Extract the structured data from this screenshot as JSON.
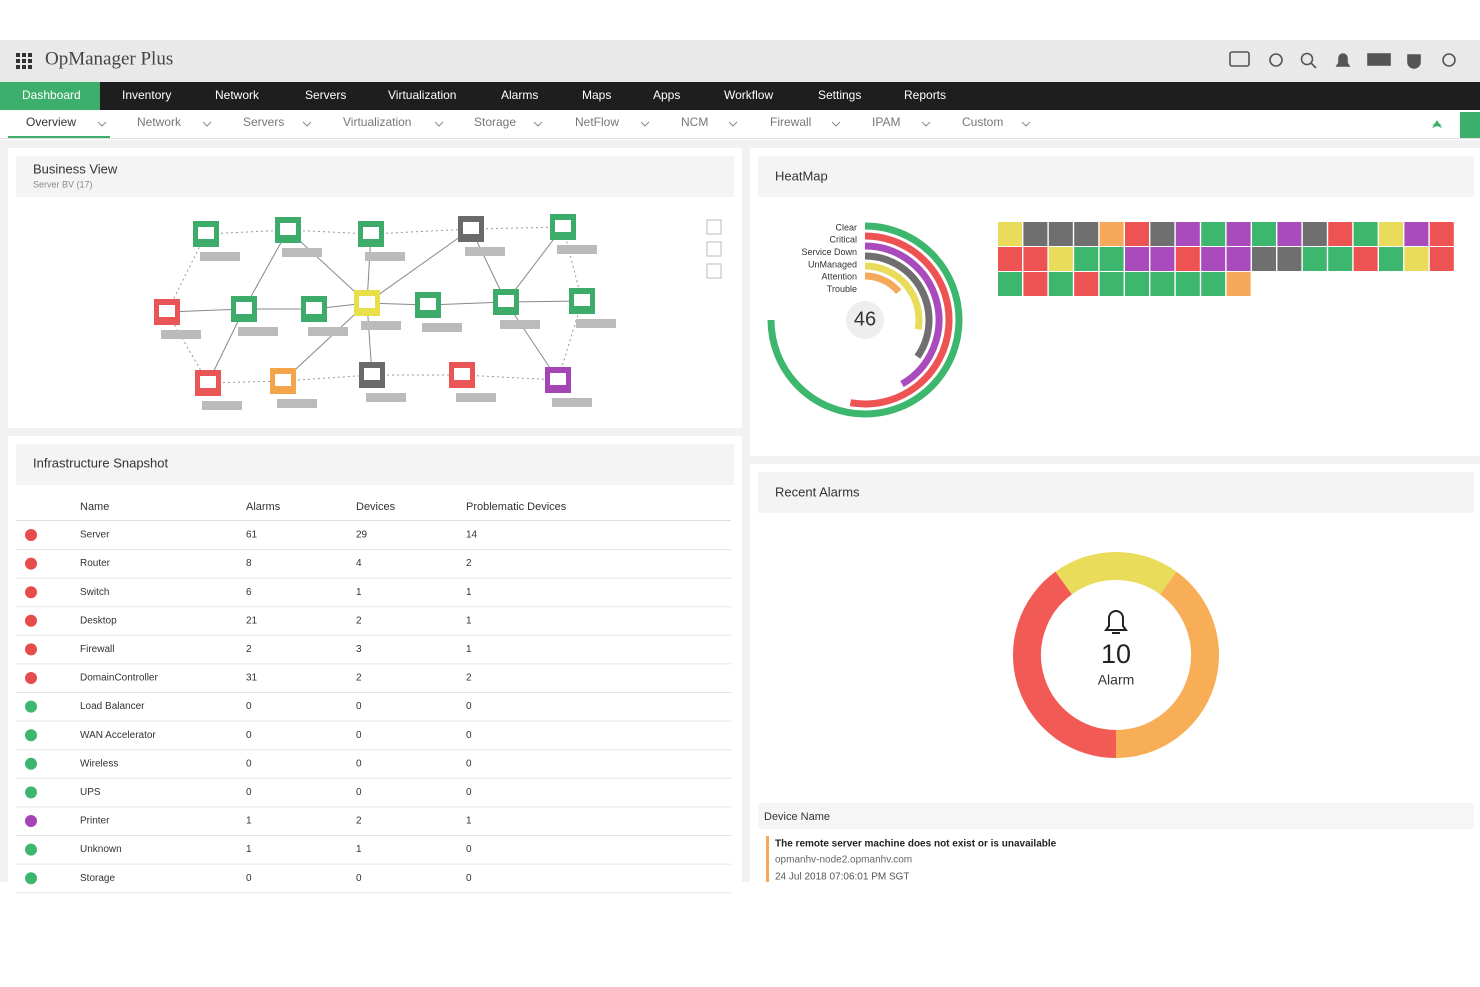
{
  "header": {
    "title": "OpManager Plus"
  },
  "nav": [
    "Dashboard",
    "Inventory",
    "Network",
    "Servers",
    "Virtualization",
    "Alarms",
    "Maps",
    "Apps",
    "Workflow",
    "Settings",
    "Reports"
  ],
  "subnav": [
    "Overview",
    "Network",
    "Servers",
    "Virtualization",
    "Storage",
    "NetFlow",
    "NCM",
    "Firewall",
    "IPAM",
    "Custom"
  ],
  "business_view": {
    "title": "Business View",
    "subtitle": "Server BV (17)"
  },
  "heatmap": {
    "title": "HeatMap",
    "legend": [
      "Clear",
      "Critical",
      "Service Down",
      "UnManaged",
      "Attention",
      "Trouble"
    ],
    "total": 46,
    "tiles": [
      [
        "#e8dc5a",
        "#6f6f6f",
        "#6f6f6f",
        "#6f6f6f",
        "#f6a95a",
        "#ee5353",
        "#6f6f6f",
        "#a94bbd",
        "#3db66e",
        "#a94bbd",
        "#3db66e",
        "#a94bbd",
        "#6f6f6f",
        "#ee5353",
        "#3db66e",
        "#e8dc5a",
        "#a94bbd",
        "#ee5353"
      ],
      [
        "#ee5353",
        "#ee5353",
        "#e8dc5a",
        "#3db66e",
        "#3db66e",
        "#a94bbd",
        "#a94bbd",
        "#ee5353",
        "#a94bbd",
        "#a94bbd",
        "#6f6f6f",
        "#6f6f6f",
        "#3db66e",
        "#3db66e",
        "#ee5353",
        "#3db66e",
        "#e8dc5a",
        "#ee5353"
      ],
      [
        "#3db66e",
        "#ee5353",
        "#3db66e",
        "#ee5353",
        "#3db66e",
        "#3db66e",
        "#3db66e",
        "#3db66e",
        "#3db66e",
        "#f6a95a"
      ]
    ]
  },
  "infrastructure": {
    "title": "Infrastructure Snapshot",
    "columns": [
      "Name",
      "Alarms",
      "Devices",
      "Problematic Devices"
    ],
    "rows": [
      [
        "Server",
        61,
        29,
        14
      ],
      [
        "Router",
        8,
        4,
        2
      ],
      [
        "Switch",
        6,
        1,
        1
      ],
      [
        "Desktop",
        21,
        2,
        1
      ],
      [
        "Firewall",
        2,
        3,
        1
      ],
      [
        "DomainController",
        31,
        2,
        2
      ],
      [
        "Load Balancer",
        0,
        0,
        0
      ],
      [
        "WAN Accelerator",
        0,
        0,
        0
      ],
      [
        "Wireless",
        0,
        0,
        0
      ],
      [
        "UPS",
        0,
        0,
        0
      ],
      [
        "Printer",
        1,
        2,
        1
      ],
      [
        "Unknown",
        1,
        1,
        0
      ],
      [
        "Storage",
        0,
        0,
        0
      ]
    ]
  },
  "recent_alarms": {
    "title": "Recent Alarms",
    "count": 10,
    "count_label": "Alarm",
    "segments": [
      {
        "color": "#f25a55",
        "value": 4
      },
      {
        "color": "#e8dc5a",
        "value": 2
      },
      {
        "color": "#f8ae57",
        "value": 4
      }
    ],
    "column": "Device Name",
    "items": [
      {
        "message": "The remote server machine does not exist or is unavailable",
        "device": "opmanhv-node2.opmanhv.com",
        "time": "24 Jul 2018 07:06:01 PM SGT"
      }
    ]
  }
}
